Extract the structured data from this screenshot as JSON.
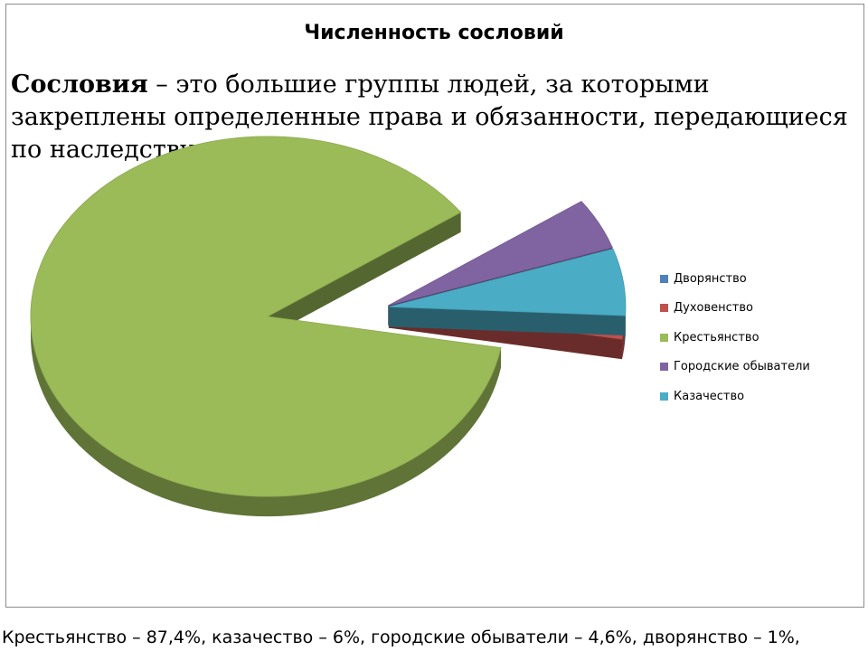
{
  "title": "Численность сословий",
  "definition": {
    "term": "Сословия",
    "text": " – это большие группы людей, за которыми закреплены определенные права и обязанности, передающиеся по наследству."
  },
  "footer": "Крестьянство – 87,4%, казачество – 6%, городские обыватели – 4,6%, дворянство – 1%,",
  "chart_data": {
    "type": "pie",
    "style": "3d exploded",
    "legend_position": "right",
    "slices": [
      {
        "name": "Дворянство",
        "value": 1,
        "color": "#4f81bd"
      },
      {
        "name": "Духовенство",
        "value": 1,
        "color": "#c0504d"
      },
      {
        "name": "Крестьянство",
        "value": 87.4,
        "color": "#9bbb59"
      },
      {
        "name": "Городские обыватели",
        "value": 4.6,
        "color": "#8064a2"
      },
      {
        "name": "Казачество",
        "value": 6,
        "color": "#4bacc6"
      }
    ]
  }
}
